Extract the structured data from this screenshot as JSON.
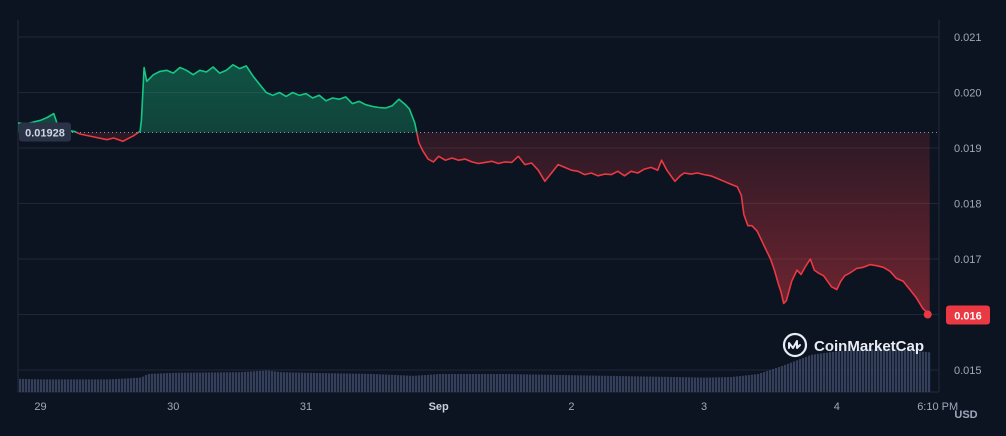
{
  "chart_data": {
    "type": "area",
    "currency": "USD",
    "y_ticks": [
      "0.021",
      "0.020",
      "0.019",
      "0.018",
      "0.017",
      "0.016",
      "0.015"
    ],
    "y_tick_values": [
      0.021,
      0.02,
      0.019,
      0.018,
      0.017,
      0.016,
      0.015
    ],
    "ylim": [
      0.01485,
      0.0212
    ],
    "x_ticks": [
      "29",
      "30",
      "31",
      "Sep",
      "2",
      "3",
      "4",
      "6:10 PM"
    ],
    "x_tick_positions_days": [
      0,
      1,
      2,
      3,
      4,
      5,
      6,
      6.76
    ],
    "xlim_days": [
      -0.17,
      6.77
    ],
    "reference_price": 0.01928,
    "reference_label": "0.01928",
    "last_price": 0.016,
    "last_label": "0.016",
    "colors": {
      "up": "#16c784",
      "down": "#ea3943",
      "background": "#0d1421",
      "volume": "#34405b"
    },
    "series": [
      {
        "points": [
          [
            -0.17,
            0.01945
          ],
          [
            -0.1,
            0.01944
          ],
          [
            -0.05,
            0.01947
          ],
          [
            0.0,
            0.0195
          ],
          [
            0.05,
            0.01955
          ],
          [
            0.1,
            0.01962
          ],
          [
            0.13,
            0.0194
          ],
          [
            0.18,
            0.01932
          ],
          [
            0.25,
            0.0193
          ],
          [
            0.3,
            0.01925
          ],
          [
            0.4,
            0.0192
          ],
          [
            0.5,
            0.01915
          ],
          [
            0.55,
            0.01918
          ],
          [
            0.62,
            0.01912
          ],
          [
            0.7,
            0.01922
          ],
          [
            0.75,
            0.0193
          ],
          [
            0.76,
            0.0195
          ],
          [
            0.78,
            0.02045
          ],
          [
            0.8,
            0.0202
          ],
          [
            0.85,
            0.02032
          ],
          [
            0.9,
            0.02038
          ],
          [
            0.95,
            0.0204
          ],
          [
            1.0,
            0.02035
          ],
          [
            1.05,
            0.02045
          ],
          [
            1.1,
            0.0204
          ],
          [
            1.15,
            0.02032
          ],
          [
            1.2,
            0.0204
          ],
          [
            1.25,
            0.02037
          ],
          [
            1.3,
            0.02046
          ],
          [
            1.35,
            0.02035
          ],
          [
            1.4,
            0.0204
          ],
          [
            1.45,
            0.0205
          ],
          [
            1.5,
            0.02043
          ],
          [
            1.55,
            0.02048
          ],
          [
            1.6,
            0.0203
          ],
          [
            1.65,
            0.02015
          ],
          [
            1.7,
            0.02
          ],
          [
            1.75,
            0.01995
          ],
          [
            1.8,
            0.02
          ],
          [
            1.85,
            0.01993
          ],
          [
            1.9,
            0.02
          ],
          [
            1.95,
            0.01995
          ],
          [
            2.0,
            0.01998
          ],
          [
            2.05,
            0.0199
          ],
          [
            2.1,
            0.01995
          ],
          [
            2.15,
            0.01985
          ],
          [
            2.2,
            0.0199
          ],
          [
            2.25,
            0.01988
          ],
          [
            2.3,
            0.01992
          ],
          [
            2.35,
            0.0198
          ],
          [
            2.4,
            0.01984
          ],
          [
            2.45,
            0.01978
          ],
          [
            2.5,
            0.01975
          ],
          [
            2.55,
            0.01973
          ],
          [
            2.6,
            0.01972
          ],
          [
            2.65,
            0.01976
          ],
          [
            2.7,
            0.01988
          ],
          [
            2.75,
            0.01978
          ],
          [
            2.78,
            0.0197
          ],
          [
            2.82,
            0.01945
          ],
          [
            2.85,
            0.0191
          ],
          [
            2.88,
            0.01895
          ],
          [
            2.92,
            0.0188
          ],
          [
            2.96,
            0.01875
          ],
          [
            3.0,
            0.01885
          ],
          [
            3.05,
            0.01878
          ],
          [
            3.1,
            0.01882
          ],
          [
            3.15,
            0.01878
          ],
          [
            3.2,
            0.0188
          ],
          [
            3.25,
            0.01875
          ],
          [
            3.3,
            0.01872
          ],
          [
            3.35,
            0.01874
          ],
          [
            3.4,
            0.01876
          ],
          [
            3.45,
            0.01872
          ],
          [
            3.5,
            0.01875
          ],
          [
            3.55,
            0.01874
          ],
          [
            3.6,
            0.01885
          ],
          [
            3.65,
            0.0187
          ],
          [
            3.7,
            0.01873
          ],
          [
            3.75,
            0.0186
          ],
          [
            3.8,
            0.0184
          ],
          [
            3.85,
            0.01855
          ],
          [
            3.9,
            0.0187
          ],
          [
            3.95,
            0.01865
          ],
          [
            4.0,
            0.0186
          ],
          [
            4.05,
            0.01858
          ],
          [
            4.1,
            0.01852
          ],
          [
            4.15,
            0.01855
          ],
          [
            4.2,
            0.0185
          ],
          [
            4.25,
            0.01853
          ],
          [
            4.3,
            0.01852
          ],
          [
            4.35,
            0.01858
          ],
          [
            4.4,
            0.0185
          ],
          [
            4.45,
            0.01858
          ],
          [
            4.5,
            0.01855
          ],
          [
            4.55,
            0.01862
          ],
          [
            4.6,
            0.01865
          ],
          [
            4.65,
            0.0186
          ],
          [
            4.68,
            0.01878
          ],
          [
            4.72,
            0.0186
          ],
          [
            4.75,
            0.0185
          ],
          [
            4.78,
            0.0184
          ],
          [
            4.82,
            0.0185
          ],
          [
            4.85,
            0.01855
          ],
          [
            4.9,
            0.01853
          ],
          [
            4.95,
            0.01855
          ],
          [
            5.0,
            0.01852
          ],
          [
            5.05,
            0.0185
          ],
          [
            5.1,
            0.01845
          ],
          [
            5.15,
            0.0184
          ],
          [
            5.2,
            0.01835
          ],
          [
            5.25,
            0.0183
          ],
          [
            5.28,
            0.01815
          ],
          [
            5.3,
            0.0178
          ],
          [
            5.33,
            0.0176
          ],
          [
            5.36,
            0.0176
          ],
          [
            5.4,
            0.0175
          ],
          [
            5.45,
            0.01725
          ],
          [
            5.5,
            0.017
          ],
          [
            5.53,
            0.0168
          ],
          [
            5.56,
            0.01655
          ],
          [
            5.58,
            0.0164
          ],
          [
            5.6,
            0.0162
          ],
          [
            5.62,
            0.01625
          ],
          [
            5.66,
            0.0166
          ],
          [
            5.7,
            0.0168
          ],
          [
            5.73,
            0.01672
          ],
          [
            5.76,
            0.01685
          ],
          [
            5.8,
            0.017
          ],
          [
            5.83,
            0.0168
          ],
          [
            5.86,
            0.01675
          ],
          [
            5.9,
            0.0167
          ],
          [
            5.93,
            0.0166
          ],
          [
            5.96,
            0.0165
          ],
          [
            6.0,
            0.01645
          ],
          [
            6.03,
            0.0166
          ],
          [
            6.06,
            0.0167
          ],
          [
            6.1,
            0.01675
          ],
          [
            6.15,
            0.01683
          ],
          [
            6.2,
            0.01685
          ],
          [
            6.25,
            0.0169
          ],
          [
            6.3,
            0.01688
          ],
          [
            6.35,
            0.01685
          ],
          [
            6.4,
            0.01678
          ],
          [
            6.45,
            0.01665
          ],
          [
            6.5,
            0.0166
          ],
          [
            6.55,
            0.01645
          ],
          [
            6.6,
            0.0163
          ],
          [
            6.65,
            0.0161
          ],
          [
            6.7,
            0.016
          ]
        ]
      }
    ],
    "volume_profile": [
      [
        -0.17,
        0.22
      ],
      [
        0.0,
        0.21
      ],
      [
        0.5,
        0.21
      ],
      [
        0.75,
        0.24
      ],
      [
        0.8,
        0.3
      ],
      [
        1.0,
        0.32
      ],
      [
        1.5,
        0.33
      ],
      [
        1.7,
        0.36
      ],
      [
        1.8,
        0.33
      ],
      [
        2.0,
        0.32
      ],
      [
        2.5,
        0.3
      ],
      [
        2.8,
        0.27
      ],
      [
        3.0,
        0.3
      ],
      [
        3.5,
        0.3
      ],
      [
        4.0,
        0.28
      ],
      [
        4.5,
        0.26
      ],
      [
        5.0,
        0.24
      ],
      [
        5.2,
        0.25
      ],
      [
        5.4,
        0.3
      ],
      [
        5.6,
        0.45
      ],
      [
        5.8,
        0.62
      ],
      [
        6.0,
        0.68
      ],
      [
        6.3,
        0.72
      ],
      [
        6.5,
        0.7
      ],
      [
        6.7,
        0.66
      ]
    ],
    "grid": true
  },
  "watermark": {
    "text": "CoinMarketCap",
    "icon": "coinmarketcap-logo-icon"
  }
}
